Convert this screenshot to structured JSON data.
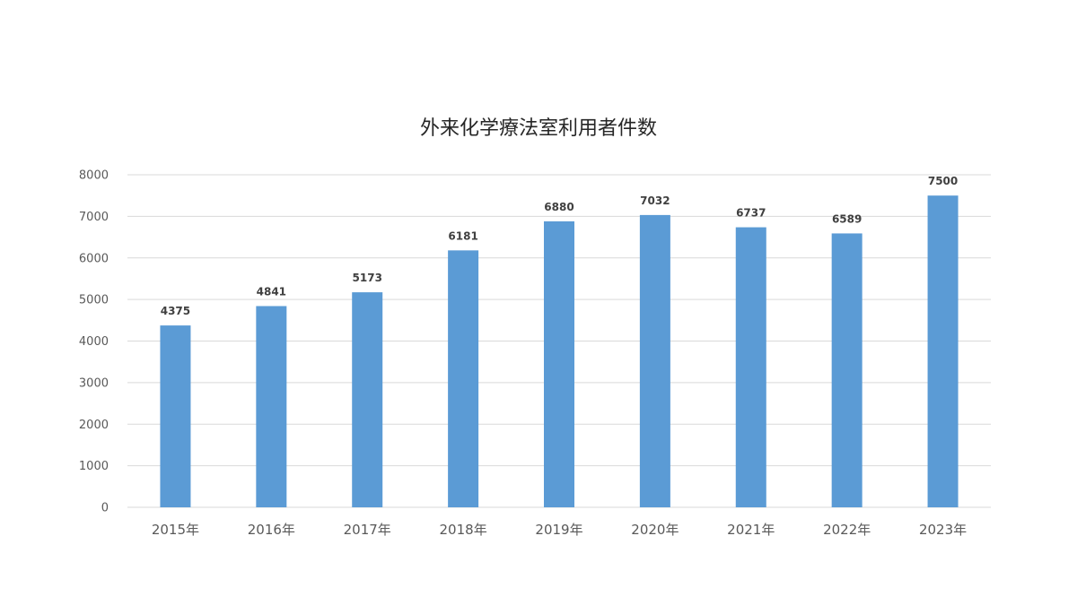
{
  "chart_data": {
    "type": "bar",
    "title": "外来化学療法室利用者件数",
    "xlabel": "",
    "ylabel": "",
    "categories": [
      "2015年",
      "2016年",
      "2017年",
      "2018年",
      "2019年",
      "2020年",
      "2021年",
      "2022年",
      "2023年"
    ],
    "values": [
      4375,
      4841,
      5173,
      6181,
      6880,
      7032,
      6737,
      6589,
      7500
    ],
    "ylim": [
      0,
      8000
    ],
    "yticks": [
      0,
      1000,
      2000,
      3000,
      4000,
      5000,
      6000,
      7000,
      8000
    ],
    "grid": true,
    "legend": "none",
    "bar_color": "#5b9bd5"
  }
}
